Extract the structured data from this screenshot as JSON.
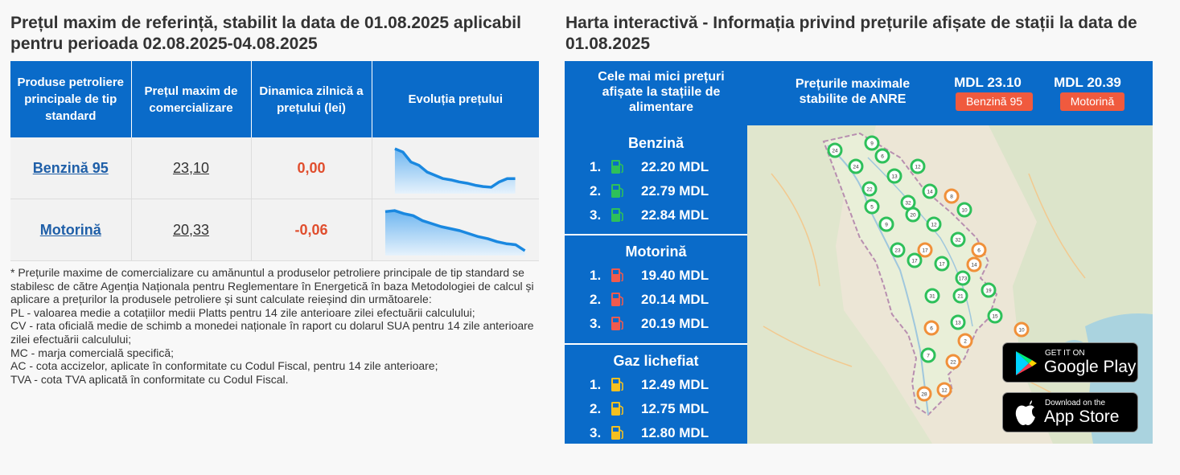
{
  "left": {
    "title": "Prețul maxim de referință, stabilit la data de 01.08.2025 aplicabil pentru perioada 02.08.2025-04.08.2025",
    "headers": [
      "Produse petroliere principale de tip standard",
      "Prețul maxim de comercializare",
      "Dinamica zilnică a prețului (lei)",
      "Evoluția prețului"
    ],
    "rows": [
      {
        "product": "Benzină 95",
        "price": "23,10",
        "dynamic": "0,00",
        "trend": [
          23.55,
          23.5,
          23.35,
          23.3,
          23.2,
          23.15,
          23.1,
          23.08,
          23.05,
          23.03,
          23.0,
          22.98,
          22.97,
          23.05,
          23.1,
          23.1
        ]
      },
      {
        "product": "Motorină",
        "price": "20,33",
        "dynamic": "-0,06",
        "trend": [
          20.72,
          20.73,
          20.7,
          20.68,
          20.63,
          20.6,
          20.57,
          20.55,
          20.53,
          20.5,
          20.47,
          20.45,
          20.42,
          20.4,
          20.39,
          20.33
        ]
      }
    ],
    "notes": [
      "* Prețurile maxime de comercializare cu amănuntul a produselor petroliere principale de tip standard se stabilesc de către Agenția Naționala pentru Reglementare în Energetică în baza Metodologiei de calcul și aplicare a prețurilor la produsele petroliere și sunt calculate reieșind din următoarele:",
      "PL - valoarea medie a cotațiilor medii Platts pentru 14 zile anterioare zilei efectuării calculului;",
      "CV - rata oficială medie de schimb a monedei naționale în raport cu dolarul SUA pentru 14 zile anterioare zilei efectuării calculului;",
      "MC - marja comercială specifică;",
      "AC - cota accizelor, aplicate în conformitate cu Codul Fiscal, pentru 14 zile anterioare;",
      "TVA - cota TVA aplicată în conformitate cu Codul Fiscal."
    ]
  },
  "right": {
    "title": "Harta interactivă - Informația privind prețurile afișate de stații la data de 01.08.2025",
    "lowest_label": "Cele mai mici prețuri afișate la stațiile de alimentare",
    "max_label": "Prețurile maximale stabilite de ANRE",
    "max_prices": [
      {
        "price": "MDL 23.10",
        "badge": "Benzină 95"
      },
      {
        "price": "MDL 20.39",
        "badge": "Motorină"
      }
    ],
    "groups": [
      {
        "title": "Benzină",
        "icon_color": "#2ec05a",
        "items": [
          {
            "rank": "1.",
            "price": "22.20 MDL"
          },
          {
            "rank": "2.",
            "price": "22.79 MDL"
          },
          {
            "rank": "3.",
            "price": "22.84 MDL"
          }
        ]
      },
      {
        "title": "Motorină",
        "icon_color": "#f05a4e",
        "items": [
          {
            "rank": "1.",
            "price": "19.40 MDL"
          },
          {
            "rank": "2.",
            "price": "20.14 MDL"
          },
          {
            "rank": "3.",
            "price": "20.19 MDL"
          }
        ]
      },
      {
        "title": "Gaz lichefiat",
        "icon_color": "#f4c020",
        "items": [
          {
            "rank": "1.",
            "price": "12.49 MDL"
          },
          {
            "rank": "2.",
            "price": "12.75 MDL"
          },
          {
            "rank": "3.",
            "price": "12.80 MDL"
          }
        ]
      }
    ],
    "map_markers": [
      {
        "label": "24",
        "color": "green"
      },
      {
        "label": "9",
        "color": "green"
      },
      {
        "label": "6",
        "color": "green"
      },
      {
        "label": "24",
        "color": "green"
      },
      {
        "label": "13",
        "color": "green"
      },
      {
        "label": "12",
        "color": "green"
      },
      {
        "label": "22",
        "color": "green"
      },
      {
        "label": "14",
        "color": "green"
      },
      {
        "label": "8",
        "color": "orange"
      },
      {
        "label": "5",
        "color": "green"
      },
      {
        "label": "32",
        "color": "green"
      },
      {
        "label": "20",
        "color": "green"
      },
      {
        "label": "9",
        "color": "green"
      },
      {
        "label": "12",
        "color": "green"
      },
      {
        "label": "10",
        "color": "green"
      },
      {
        "label": "32",
        "color": "green"
      },
      {
        "label": "23",
        "color": "green"
      },
      {
        "label": "17",
        "color": "orange"
      },
      {
        "label": "6",
        "color": "orange"
      },
      {
        "label": "17",
        "color": "green"
      },
      {
        "label": "17",
        "color": "green"
      },
      {
        "label": "14",
        "color": "orange"
      },
      {
        "label": "173",
        "color": "green"
      },
      {
        "label": "19",
        "color": "green"
      },
      {
        "label": "31",
        "color": "green"
      },
      {
        "label": "21",
        "color": "green"
      },
      {
        "label": "15",
        "color": "green"
      },
      {
        "label": "6",
        "color": "orange"
      },
      {
        "label": "13",
        "color": "green"
      },
      {
        "label": "10",
        "color": "orange"
      },
      {
        "label": "2",
        "color": "orange"
      },
      {
        "label": "7",
        "color": "green"
      },
      {
        "label": "22",
        "color": "orange"
      },
      {
        "label": "28",
        "color": "orange"
      },
      {
        "label": "12",
        "color": "orange"
      }
    ],
    "stores": [
      {
        "small": "GET IT ON",
        "large": "Google Play"
      },
      {
        "small": "Download on the",
        "large": "App Store"
      }
    ]
  }
}
